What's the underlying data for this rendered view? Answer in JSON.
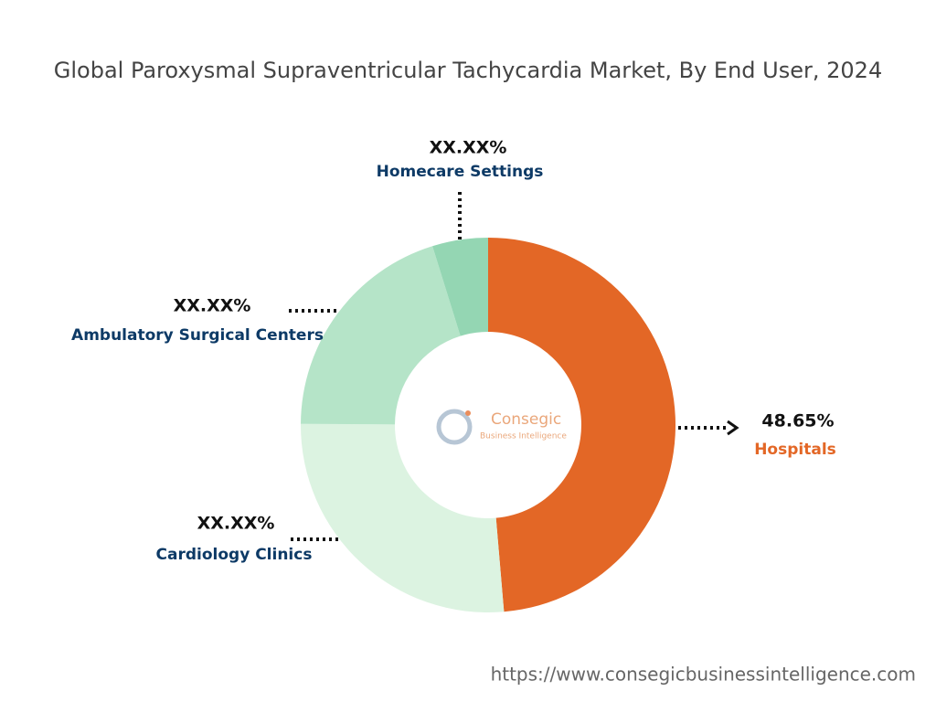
{
  "chart_data": {
    "type": "donut",
    "title": "Global Paroxysmal Supraventricular Tachycardia Market, By End User, 2024",
    "categories": [
      "Hospitals",
      "Cardiology Clinics",
      "Ambulatory Surgical Centers",
      "Homecare Settings"
    ],
    "values": [
      48.65,
      26.45,
      20.1,
      4.8
    ],
    "value_labels": [
      "48.65%",
      "XX.XX%",
      "XX.XX%",
      "XX.XX%"
    ],
    "colors": [
      "#e36726",
      "#dcf3e1",
      "#b5e4c8",
      "#94d6b3"
    ]
  },
  "logo": {
    "name": "Consegic",
    "tagline": "Business Intelligence"
  },
  "footer": "https://www.consegicbusinessintelligence.com"
}
